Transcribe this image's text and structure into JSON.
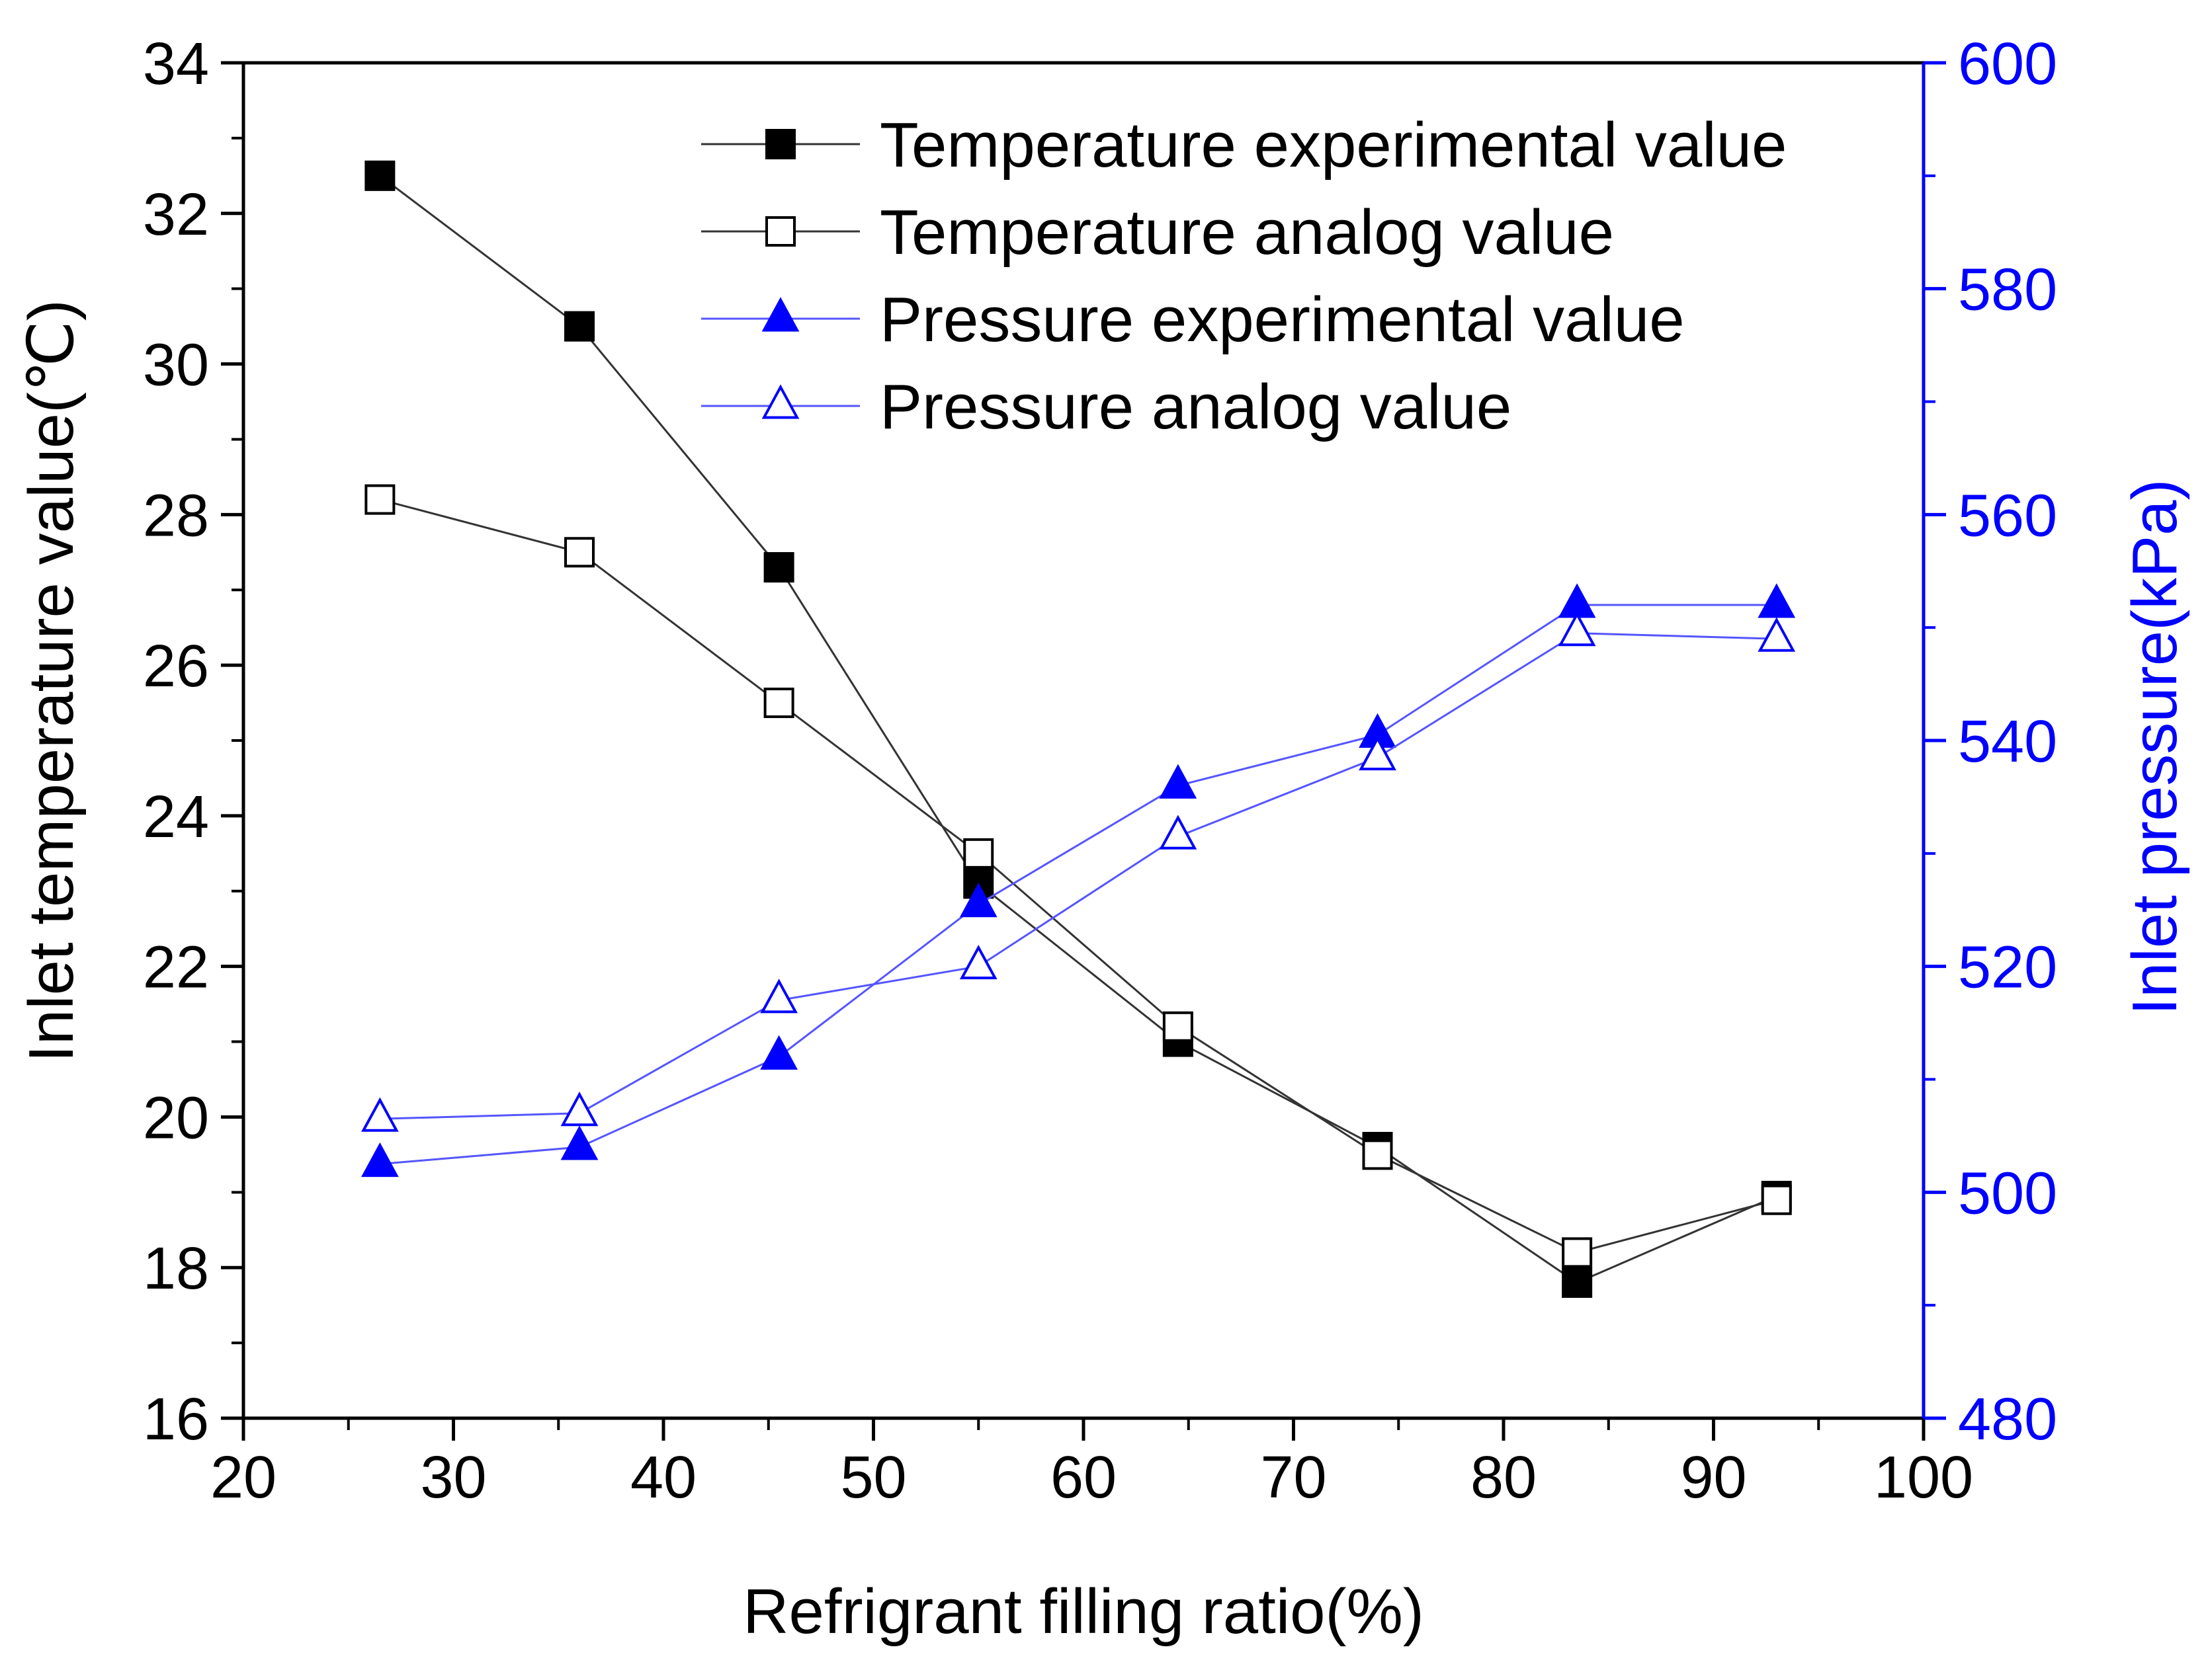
{
  "chart_data": {
    "type": "line",
    "title": "",
    "xlabel": "Refrigrant filling ratio(%)",
    "ylabel": "Inlet temperature value(℃)",
    "y2label": "Inlet pressure(kPa)",
    "xlim": [
      20,
      100
    ],
    "ylim": [
      16,
      34
    ],
    "y2lim": [
      480,
      600
    ],
    "x_ticks": [
      20,
      30,
      40,
      50,
      60,
      70,
      80,
      90,
      100
    ],
    "y_ticks": [
      16,
      18,
      20,
      22,
      24,
      26,
      28,
      30,
      32,
      34
    ],
    "y2_ticks": [
      480,
      500,
      520,
      540,
      560,
      580,
      600
    ],
    "grid": false,
    "legend_position": "top-right",
    "colors": {
      "temperature": "#000000",
      "pressure": "#0000ff",
      "temperature_line": "#333333",
      "pressure_line": "#5555ff"
    },
    "x": [
      26.5,
      36,
      45.5,
      55,
      64.5,
      74,
      83.5,
      93
    ],
    "series": [
      {
        "name": "Temperature experimental value",
        "axis": "left",
        "marker": "square-filled",
        "color": "#000000",
        "values": [
          32.5,
          30.5,
          27.3,
          23.1,
          21.0,
          19.6,
          17.8,
          18.95
        ]
      },
      {
        "name": "Temperature analog value",
        "axis": "left",
        "marker": "square-open",
        "color": "#000000",
        "values": [
          28.2,
          27.5,
          25.5,
          23.5,
          21.2,
          19.5,
          18.2,
          18.9
        ]
      },
      {
        "name": "Pressure experimental value",
        "axis": "right",
        "marker": "triangle-filled",
        "color": "#0000ff",
        "values": [
          502.5,
          504,
          512,
          525.5,
          536,
          540.5,
          552,
          552
        ]
      },
      {
        "name": "Pressure analog value",
        "axis": "right",
        "marker": "triangle-open",
        "color": "#0000ff",
        "values": [
          506.5,
          507,
          517,
          520,
          531.5,
          538.5,
          549.5,
          549
        ]
      }
    ]
  }
}
